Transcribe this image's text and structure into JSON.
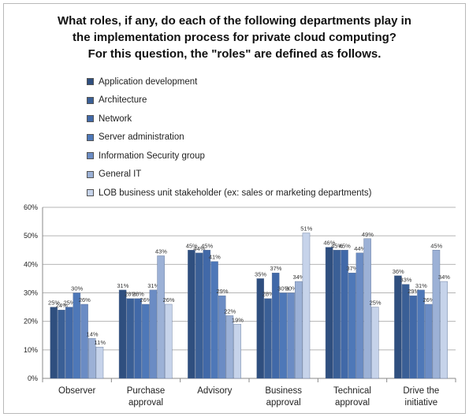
{
  "title": {
    "line1": "What roles, if any, do each of the following departments play in",
    "line2": "the implementation process for private cloud computing?",
    "line3": "For this question, the \"roles\" are defined as follows."
  },
  "chart_data": {
    "type": "bar",
    "title": "What roles, if any, do each of the following departments play in the implementation process for private cloud computing? For this question, the \"roles\" are defined as follows.",
    "categories": [
      [
        "Observer"
      ],
      [
        "Purchase",
        "approval"
      ],
      [
        "Advisory"
      ],
      [
        "Business",
        "approval"
      ],
      [
        "Technical",
        "approval"
      ],
      [
        "Drive the",
        "initiative"
      ]
    ],
    "yticks": [
      "0%",
      "10%",
      "20%",
      "30%",
      "40%",
      "50%",
      "60%"
    ],
    "ylim": [
      0,
      60
    ],
    "grid": true,
    "legend_position": "top",
    "series": [
      {
        "name": "Application development",
        "color": "#2f4f7f",
        "values": [
          25,
          31,
          45,
          35,
          46,
          36
        ],
        "labels": [
          "25%",
          "31%",
          "45%",
          "35%",
          "46%",
          "36%"
        ]
      },
      {
        "name": "Architecture",
        "color": "#3a5f96",
        "values": [
          24,
          28,
          44,
          28,
          45,
          33
        ],
        "labels": [
          "24%",
          "28%",
          "44%",
          "28%",
          "45%",
          "33%"
        ]
      },
      {
        "name": "Network",
        "color": "#4169a8",
        "values": [
          25,
          28,
          45,
          37,
          45,
          29
        ],
        "labels": [
          "25%",
          "28%",
          "45%",
          "37%",
          "45%",
          "29%"
        ]
      },
      {
        "name": "Server administration",
        "color": "#4e78b8",
        "values": [
          30,
          26,
          41,
          30,
          37,
          31
        ],
        "labels": [
          "30%",
          "26%",
          "41%",
          "30%",
          "37%",
          "31%"
        ]
      },
      {
        "name": "Information Security group",
        "color": "#6b8cc4",
        "values": [
          26,
          31,
          29,
          30,
          44,
          26
        ],
        "labels": [
          "26%",
          "31%",
          "29%",
          "30%",
          "44%",
          "26%"
        ]
      },
      {
        "name": "General IT",
        "color": "#9cb1d6",
        "values": [
          14,
          43,
          22,
          34,
          49,
          45
        ],
        "labels": [
          "14%",
          "43%",
          "22%",
          "34%",
          "49%",
          "45%"
        ]
      },
      {
        "name": "LOB business unit stakeholder (ex: sales or marketing departments)",
        "color": "#c6d3ea",
        "values": [
          11,
          26,
          19,
          51,
          25,
          34
        ],
        "labels": [
          "11%",
          "26%",
          "19%",
          "51%",
          "25%",
          "34%"
        ]
      }
    ]
  }
}
